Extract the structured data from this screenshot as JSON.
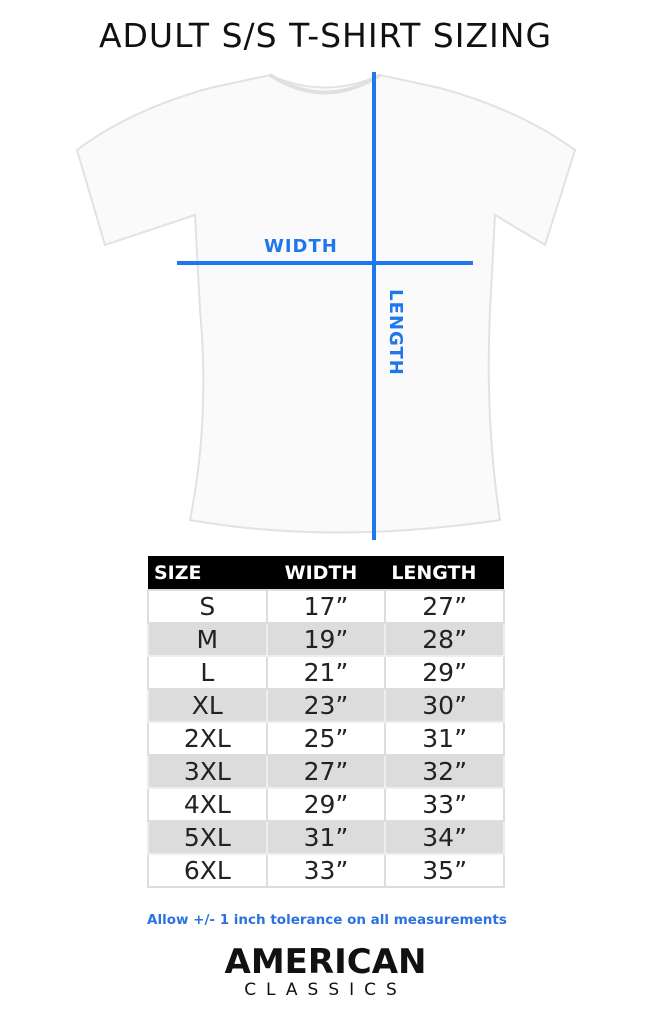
{
  "title": "ADULT S/S T-SHIRT SIZING",
  "diagram": {
    "width_label": "WIDTH",
    "length_label": "LENGTH",
    "line_color": "#1f77ee"
  },
  "table": {
    "headers": [
      "SIZE",
      "WIDTH",
      "LENGTH"
    ],
    "rows": [
      [
        "S",
        "17”",
        "27”"
      ],
      [
        "M",
        "19”",
        "28”"
      ],
      [
        "L",
        "21”",
        "29”"
      ],
      [
        "XL",
        "23”",
        "30”"
      ],
      [
        "2XL",
        "25”",
        "31”"
      ],
      [
        "3XL",
        "27”",
        "32”"
      ],
      [
        "4XL",
        "29”",
        "33”"
      ],
      [
        "5XL",
        "31”",
        "34”"
      ],
      [
        "6XL",
        "33”",
        "35”"
      ]
    ]
  },
  "note": "Allow +/- 1 inch tolerance on all measurements",
  "brand": {
    "line1": "AMERICAN",
    "line2": "CLASSICS"
  }
}
